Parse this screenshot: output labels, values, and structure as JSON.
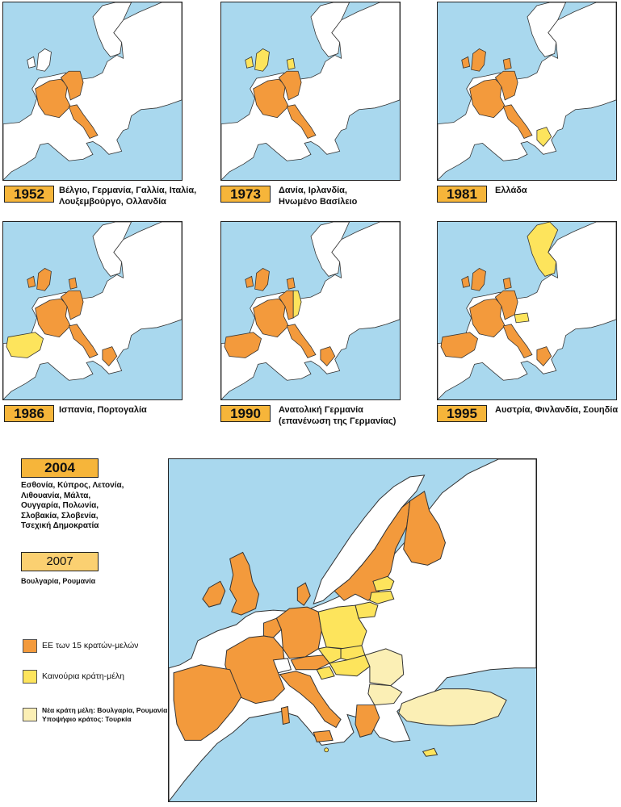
{
  "colors": {
    "sea": "#a9d8ee",
    "land": "#ffffff",
    "eu15": "#f39a3c",
    "new_members": "#fde45c",
    "newest_candidate": "#fbefb5",
    "border": "#222222",
    "year_box": "#f6b53a"
  },
  "enlargements": [
    {
      "year": "1952",
      "countries": [
        "Βέλγιο, Γερμανία, Γαλλία, Ιταλία,",
        "Λουξεμβούργο, Ολλανδία"
      ]
    },
    {
      "year": "1973",
      "countries": [
        "Δανία, Ιρλανδία,",
        "Ηνωμένο Βασίλειο"
      ]
    },
    {
      "year": "1981",
      "countries": [
        "Ελλάδα"
      ]
    },
    {
      "year": "1986",
      "countries": [
        "Ισπανία, Πορτογαλία"
      ]
    },
    {
      "year": "1990",
      "countries": [
        "Ανατολική Γερμανία",
        "(επανένωση της Γερμανίας)"
      ]
    },
    {
      "year": "1995",
      "countries": [
        "Αυστρία, Φινλανδία, Σουηδία"
      ]
    }
  ],
  "enlargement_2004": {
    "year": "2004",
    "countries": [
      "Εσθονία, Κύπρος, Λετονία,",
      "Λιθουανία, Μάλτα,",
      "Ουγγαρία, Πολωνία,",
      "Σλοβακία, Σλοβενία,",
      "Τσεχική Δημοκρατία"
    ]
  },
  "enlargement_2007": {
    "year": "2007",
    "countries": [
      "Βουλγαρία, Ρουμανία"
    ]
  },
  "legend": {
    "eu15": "ΕΕ των 15 κρατών-μελών",
    "new_members": "Καινούρια κράτη-μέλη",
    "newest": [
      "Νέα κράτη μέλη: Βουλγαρία, Ρουμανία",
      "Υποψήφιο κράτος: Τουρκία"
    ]
  }
}
